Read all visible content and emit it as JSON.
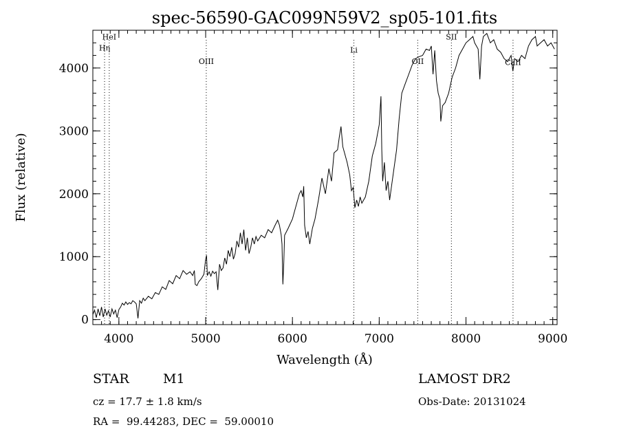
{
  "chart_data": {
    "type": "line",
    "title": "spec-56590-GAC099N59V2_sp05-101.fits",
    "xlabel": "Wavelength (Å)",
    "ylabel": "Flux (relative)",
    "xlim": [
      3700,
      9050
    ],
    "ylim": [
      -80,
      4600
    ],
    "xticks": [
      4000,
      5000,
      6000,
      7000,
      8000,
      9000
    ],
    "yticks": [
      0,
      1000,
      2000,
      3000,
      4000
    ],
    "x_minor_step": 100,
    "y_minor_step": 200,
    "grid": false,
    "lines": [
      {
        "label": "HeI",
        "x": 3889,
        "label_y": 4455
      },
      {
        "label": "Hη",
        "x": 3835,
        "label_y": 4275
      },
      {
        "label": "OIII",
        "x": 5007,
        "label_y": 4065
      },
      {
        "label": "Li",
        "x": 6708,
        "label_y": 4245
      },
      {
        "label": "OII",
        "x": 7444,
        "label_y": 4065
      },
      {
        "label": "SII",
        "x": 7832,
        "label_y": 4450
      },
      {
        "label": "CaII",
        "x": 8542,
        "label_y": 4050
      }
    ],
    "spectrum": [
      [
        3700,
        80
      ],
      [
        3720,
        150
      ],
      [
        3740,
        30
      ],
      [
        3760,
        170
      ],
      [
        3780,
        60
      ],
      [
        3800,
        200
      ],
      [
        3820,
        40
      ],
      [
        3840,
        170
      ],
      [
        3860,
        70
      ],
      [
        3880,
        140
      ],
      [
        3900,
        40
      ],
      [
        3920,
        170
      ],
      [
        3940,
        90
      ],
      [
        3960,
        150
      ],
      [
        3980,
        30
      ],
      [
        4000,
        160
      ],
      [
        4020,
        200
      ],
      [
        4040,
        260
      ],
      [
        4060,
        230
      ],
      [
        4080,
        280
      ],
      [
        4100,
        240
      ],
      [
        4120,
        270
      ],
      [
        4140,
        250
      ],
      [
        4160,
        300
      ],
      [
        4180,
        280
      ],
      [
        4200,
        250
      ],
      [
        4220,
        20
      ],
      [
        4240,
        300
      ],
      [
        4260,
        260
      ],
      [
        4280,
        340
      ],
      [
        4300,
        300
      ],
      [
        4340,
        370
      ],
      [
        4380,
        330
      ],
      [
        4420,
        430
      ],
      [
        4460,
        400
      ],
      [
        4500,
        520
      ],
      [
        4540,
        480
      ],
      [
        4580,
        620
      ],
      [
        4620,
        570
      ],
      [
        4660,
        700
      ],
      [
        4700,
        650
      ],
      [
        4740,
        780
      ],
      [
        4780,
        720
      ],
      [
        4820,
        760
      ],
      [
        4850,
        700
      ],
      [
        4870,
        780
      ],
      [
        4880,
        560
      ],
      [
        4900,
        540
      ],
      [
        4920,
        600
      ],
      [
        4950,
        650
      ],
      [
        4980,
        720
      ],
      [
        5000,
        960
      ],
      [
        5010,
        1020
      ],
      [
        5020,
        700
      ],
      [
        5040,
        760
      ],
      [
        5060,
        690
      ],
      [
        5080,
        770
      ],
      [
        5100,
        730
      ],
      [
        5120,
        760
      ],
      [
        5140,
        470
      ],
      [
        5160,
        880
      ],
      [
        5180,
        780
      ],
      [
        5200,
        820
      ],
      [
        5220,
        980
      ],
      [
        5240,
        880
      ],
      [
        5260,
        1100
      ],
      [
        5280,
        1000
      ],
      [
        5300,
        1150
      ],
      [
        5320,
        960
      ],
      [
        5340,
        1050
      ],
      [
        5360,
        1250
      ],
      [
        5380,
        1150
      ],
      [
        5400,
        1380
      ],
      [
        5420,
        1200
      ],
      [
        5440,
        1430
      ],
      [
        5460,
        1100
      ],
      [
        5480,
        1300
      ],
      [
        5500,
        1050
      ],
      [
        5520,
        1150
      ],
      [
        5540,
        1300
      ],
      [
        5560,
        1200
      ],
      [
        5580,
        1320
      ],
      [
        5600,
        1250
      ],
      [
        5640,
        1340
      ],
      [
        5680,
        1300
      ],
      [
        5720,
        1430
      ],
      [
        5760,
        1380
      ],
      [
        5800,
        1500
      ],
      [
        5830,
        1580
      ],
      [
        5850,
        1500
      ],
      [
        5870,
        1350
      ],
      [
        5880,
        1200
      ],
      [
        5890,
        560
      ],
      [
        5900,
        900
      ],
      [
        5910,
        1340
      ],
      [
        5950,
        1450
      ],
      [
        6000,
        1600
      ],
      [
        6040,
        1800
      ],
      [
        6080,
        2000
      ],
      [
        6100,
        2050
      ],
      [
        6120,
        1950
      ],
      [
        6130,
        2120
      ],
      [
        6140,
        1500
      ],
      [
        6160,
        1300
      ],
      [
        6180,
        1400
      ],
      [
        6200,
        1200
      ],
      [
        6230,
        1450
      ],
      [
        6260,
        1600
      ],
      [
        6300,
        1900
      ],
      [
        6340,
        2250
      ],
      [
        6380,
        2000
      ],
      [
        6420,
        2400
      ],
      [
        6450,
        2200
      ],
      [
        6480,
        2650
      ],
      [
        6520,
        2700
      ],
      [
        6540,
        2900
      ],
      [
        6560,
        3070
      ],
      [
        6580,
        2750
      ],
      [
        6600,
        2650
      ],
      [
        6630,
        2500
      ],
      [
        6660,
        2300
      ],
      [
        6680,
        2050
      ],
      [
        6700,
        2100
      ],
      [
        6720,
        1780
      ],
      [
        6740,
        1900
      ],
      [
        6760,
        1800
      ],
      [
        6780,
        1950
      ],
      [
        6800,
        1850
      ],
      [
        6840,
        1950
      ],
      [
        6880,
        2200
      ],
      [
        6920,
        2600
      ],
      [
        6960,
        2800
      ],
      [
        7000,
        3100
      ],
      [
        7020,
        3550
      ],
      [
        7030,
        2700
      ],
      [
        7040,
        2200
      ],
      [
        7060,
        2500
      ],
      [
        7080,
        2050
      ],
      [
        7100,
        2200
      ],
      [
        7120,
        1900
      ],
      [
        7140,
        2100
      ],
      [
        7170,
        2400
      ],
      [
        7200,
        2700
      ],
      [
        7230,
        3200
      ],
      [
        7260,
        3600
      ],
      [
        7300,
        3750
      ],
      [
        7340,
        3900
      ],
      [
        7380,
        4050
      ],
      [
        7420,
        4150
      ],
      [
        7460,
        4180
      ],
      [
        7500,
        4200
      ],
      [
        7540,
        4300
      ],
      [
        7580,
        4280
      ],
      [
        7600,
        4350
      ],
      [
        7620,
        3900
      ],
      [
        7640,
        4280
      ],
      [
        7660,
        3800
      ],
      [
        7680,
        3600
      ],
      [
        7700,
        3500
      ],
      [
        7710,
        3150
      ],
      [
        7730,
        3400
      ],
      [
        7760,
        3450
      ],
      [
        7800,
        3600
      ],
      [
        7840,
        3850
      ],
      [
        7880,
        4000
      ],
      [
        7920,
        4200
      ],
      [
        7960,
        4300
      ],
      [
        8000,
        4400
      ],
      [
        8040,
        4450
      ],
      [
        8080,
        4500
      ],
      [
        8100,
        4400
      ],
      [
        8140,
        4300
      ],
      [
        8160,
        3820
      ],
      [
        8180,
        4350
      ],
      [
        8200,
        4500
      ],
      [
        8240,
        4550
      ],
      [
        8280,
        4400
      ],
      [
        8320,
        4450
      ],
      [
        8360,
        4300
      ],
      [
        8400,
        4250
      ],
      [
        8440,
        4150
      ],
      [
        8480,
        4100
      ],
      [
        8520,
        4200
      ],
      [
        8540,
        3950
      ],
      [
        8560,
        4150
      ],
      [
        8600,
        4100
      ],
      [
        8640,
        4200
      ],
      [
        8680,
        4150
      ],
      [
        8720,
        4350
      ],
      [
        8760,
        4450
      ],
      [
        8800,
        4500
      ],
      [
        8820,
        4350
      ],
      [
        8860,
        4400
      ],
      [
        8900,
        4450
      ],
      [
        8940,
        4350
      ],
      [
        8980,
        4400
      ],
      [
        9020,
        4300
      ]
    ]
  },
  "footer": {
    "object_class": "STAR",
    "subclass": "M1",
    "survey": "LAMOST DR2",
    "cz": "cz = 17.7 ± 1.8 km/s",
    "obs_date": "Obs-Date: 20131024",
    "coords": "RA =  99.44283, DEC =  59.00010"
  }
}
